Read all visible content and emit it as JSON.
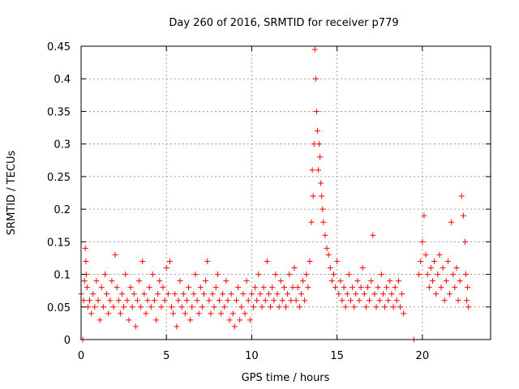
{
  "chart_data": {
    "type": "scatter",
    "title": "Day 260 of 2016, SRMTID for receiver p779",
    "xlabel": "GPS time / hours",
    "ylabel": "SRMTID / TECUs",
    "xlim": [
      0,
      24
    ],
    "ylim": [
      0,
      0.45
    ],
    "xticks": [
      0,
      5,
      10,
      15,
      20
    ],
    "yticks": [
      0,
      0.05,
      0.1,
      0.15,
      0.2,
      0.25,
      0.3,
      0.35,
      0.4,
      0.45
    ],
    "xtick_labels": [
      "0",
      "5",
      "10",
      "15",
      "20"
    ],
    "ytick_labels": [
      "0",
      "0.05",
      "0.1",
      "0.15",
      "0.2",
      "0.25",
      "0.3",
      "0.35",
      "0.4",
      "0.45"
    ],
    "grid": true,
    "marker": "+",
    "color": "#ff0000",
    "series": [
      {
        "name": "SRMTID",
        "points": [
          [
            0.0,
            0.07
          ],
          [
            0.1,
            0.0
          ],
          [
            0.15,
            0.06
          ],
          [
            0.2,
            0.09
          ],
          [
            0.25,
            0.14
          ],
          [
            0.28,
            0.12
          ],
          [
            0.3,
            0.1
          ],
          [
            0.35,
            0.08
          ],
          [
            0.4,
            0.05
          ],
          [
            0.5,
            0.06
          ],
          [
            0.6,
            0.04
          ],
          [
            0.7,
            0.07
          ],
          [
            0.8,
            0.05
          ],
          [
            0.9,
            0.09
          ],
          [
            1.0,
            0.06
          ],
          [
            1.1,
            0.03
          ],
          [
            1.2,
            0.08
          ],
          [
            1.3,
            0.05
          ],
          [
            1.4,
            0.1
          ],
          [
            1.5,
            0.07
          ],
          [
            1.6,
            0.04
          ],
          [
            1.7,
            0.06
          ],
          [
            1.8,
            0.09
          ],
          [
            1.9,
            0.05
          ],
          [
            2.0,
            0.13
          ],
          [
            2.1,
            0.08
          ],
          [
            2.2,
            0.06
          ],
          [
            2.3,
            0.04
          ],
          [
            2.4,
            0.07
          ],
          [
            2.5,
            0.05
          ],
          [
            2.6,
            0.1
          ],
          [
            2.7,
            0.06
          ],
          [
            2.8,
            0.03
          ],
          [
            2.9,
            0.08
          ],
          [
            3.0,
            0.05
          ],
          [
            3.1,
            0.07
          ],
          [
            3.2,
            0.02
          ],
          [
            3.3,
            0.06
          ],
          [
            3.4,
            0.09
          ],
          [
            3.5,
            0.05
          ],
          [
            3.6,
            0.12
          ],
          [
            3.7,
            0.07
          ],
          [
            3.8,
            0.04
          ],
          [
            3.9,
            0.06
          ],
          [
            4.0,
            0.08
          ],
          [
            4.1,
            0.05
          ],
          [
            4.2,
            0.1
          ],
          [
            4.3,
            0.06
          ],
          [
            4.4,
            0.03
          ],
          [
            4.5,
            0.07
          ],
          [
            4.6,
            0.09
          ],
          [
            4.7,
            0.05
          ],
          [
            4.8,
            0.08
          ],
          [
            4.9,
            0.06
          ],
          [
            5.0,
            0.11
          ],
          [
            5.1,
            0.07
          ],
          [
            5.2,
            0.12
          ],
          [
            5.3,
            0.05
          ],
          [
            5.4,
            0.04
          ],
          [
            5.5,
            0.07
          ],
          [
            5.6,
            0.02
          ],
          [
            5.7,
            0.06
          ],
          [
            5.8,
            0.09
          ],
          [
            5.9,
            0.05
          ],
          [
            6.0,
            0.07
          ],
          [
            6.1,
            0.04
          ],
          [
            6.2,
            0.06
          ],
          [
            6.3,
            0.08
          ],
          [
            6.4,
            0.03
          ],
          [
            6.5,
            0.05
          ],
          [
            6.6,
            0.07
          ],
          [
            6.7,
            0.1
          ],
          [
            6.8,
            0.06
          ],
          [
            6.9,
            0.04
          ],
          [
            7.0,
            0.08
          ],
          [
            7.1,
            0.05
          ],
          [
            7.2,
            0.07
          ],
          [
            7.3,
            0.09
          ],
          [
            7.4,
            0.12
          ],
          [
            7.5,
            0.06
          ],
          [
            7.6,
            0.04
          ],
          [
            7.7,
            0.07
          ],
          [
            7.8,
            0.05
          ],
          [
            7.9,
            0.08
          ],
          [
            8.0,
            0.1
          ],
          [
            8.1,
            0.06
          ],
          [
            8.2,
            0.04
          ],
          [
            8.3,
            0.07
          ],
          [
            8.4,
            0.05
          ],
          [
            8.5,
            0.09
          ],
          [
            8.6,
            0.06
          ],
          [
            8.7,
            0.03
          ],
          [
            8.8,
            0.07
          ],
          [
            8.9,
            0.04
          ],
          [
            9.0,
            0.02
          ],
          [
            9.1,
            0.06
          ],
          [
            9.2,
            0.08
          ],
          [
            9.3,
            0.03
          ],
          [
            9.4,
            0.05
          ],
          [
            9.5,
            0.07
          ],
          [
            9.6,
            0.04
          ],
          [
            9.7,
            0.09
          ],
          [
            9.8,
            0.06
          ],
          [
            9.9,
            0.03
          ],
          [
            10.0,
            0.07
          ],
          [
            10.1,
            0.05
          ],
          [
            10.2,
            0.08
          ],
          [
            10.3,
            0.06
          ],
          [
            10.4,
            0.1
          ],
          [
            10.5,
            0.07
          ],
          [
            10.6,
            0.05
          ],
          [
            10.7,
            0.08
          ],
          [
            10.8,
            0.06
          ],
          [
            10.9,
            0.12
          ],
          [
            11.0,
            0.07
          ],
          [
            11.1,
            0.05
          ],
          [
            11.2,
            0.08
          ],
          [
            11.3,
            0.06
          ],
          [
            11.4,
            0.1
          ],
          [
            11.5,
            0.07
          ],
          [
            11.6,
            0.05
          ],
          [
            11.7,
            0.09
          ],
          [
            11.8,
            0.06
          ],
          [
            11.9,
            0.08
          ],
          [
            12.0,
            0.05
          ],
          [
            12.1,
            0.07
          ],
          [
            12.2,
            0.1
          ],
          [
            12.3,
            0.06
          ],
          [
            12.4,
            0.08
          ],
          [
            12.5,
            0.11
          ],
          [
            12.6,
            0.06
          ],
          [
            12.7,
            0.08
          ],
          [
            12.8,
            0.05
          ],
          [
            12.9,
            0.07
          ],
          [
            13.0,
            0.09
          ],
          [
            13.1,
            0.06
          ],
          [
            13.2,
            0.1
          ],
          [
            13.3,
            0.08
          ],
          [
            13.4,
            0.12
          ],
          [
            13.5,
            0.18
          ],
          [
            13.55,
            0.26
          ],
          [
            13.6,
            0.22
          ],
          [
            13.65,
            0.3
          ],
          [
            13.7,
            0.445
          ],
          [
            13.75,
            0.4
          ],
          [
            13.8,
            0.35
          ],
          [
            13.85,
            0.32
          ],
          [
            13.9,
            0.26
          ],
          [
            13.95,
            0.3
          ],
          [
            14.0,
            0.28
          ],
          [
            14.05,
            0.24
          ],
          [
            14.1,
            0.22
          ],
          [
            14.15,
            0.2
          ],
          [
            14.2,
            0.18
          ],
          [
            14.3,
            0.16
          ],
          [
            14.4,
            0.14
          ],
          [
            14.5,
            0.13
          ],
          [
            14.6,
            0.11
          ],
          [
            14.7,
            0.09
          ],
          [
            14.8,
            0.1
          ],
          [
            14.9,
            0.08
          ],
          [
            15.0,
            0.12
          ],
          [
            15.1,
            0.07
          ],
          [
            15.2,
            0.09
          ],
          [
            15.3,
            0.06
          ],
          [
            15.4,
            0.08
          ],
          [
            15.5,
            0.05
          ],
          [
            15.6,
            0.07
          ],
          [
            15.7,
            0.1
          ],
          [
            15.8,
            0.06
          ],
          [
            15.9,
            0.08
          ],
          [
            16.0,
            0.05
          ],
          [
            16.1,
            0.07
          ],
          [
            16.2,
            0.09
          ],
          [
            16.3,
            0.06
          ],
          [
            16.4,
            0.08
          ],
          [
            16.5,
            0.11
          ],
          [
            16.6,
            0.07
          ],
          [
            16.7,
            0.05
          ],
          [
            16.8,
            0.08
          ],
          [
            16.9,
            0.06
          ],
          [
            17.0,
            0.09
          ],
          [
            17.1,
            0.16
          ],
          [
            17.2,
            0.07
          ],
          [
            17.3,
            0.05
          ],
          [
            17.4,
            0.08
          ],
          [
            17.5,
            0.06
          ],
          [
            17.6,
            0.1
          ],
          [
            17.7,
            0.07
          ],
          [
            17.8,
            0.05
          ],
          [
            17.9,
            0.08
          ],
          [
            18.0,
            0.06
          ],
          [
            18.1,
            0.09
          ],
          [
            18.2,
            0.07
          ],
          [
            18.3,
            0.05
          ],
          [
            18.4,
            0.08
          ],
          [
            18.5,
            0.06
          ],
          [
            18.6,
            0.09
          ],
          [
            18.7,
            0.05
          ],
          [
            18.8,
            0.07
          ],
          [
            18.9,
            0.04
          ],
          [
            19.5,
            0.0
          ],
          [
            19.8,
            0.1
          ],
          [
            19.9,
            0.12
          ],
          [
            20.0,
            0.15
          ],
          [
            20.1,
            0.19
          ],
          [
            20.2,
            0.13
          ],
          [
            20.3,
            0.1
          ],
          [
            20.4,
            0.08
          ],
          [
            20.5,
            0.11
          ],
          [
            20.6,
            0.09
          ],
          [
            20.7,
            0.12
          ],
          [
            20.8,
            0.07
          ],
          [
            20.9,
            0.1
          ],
          [
            21.0,
            0.13
          ],
          [
            21.1,
            0.08
          ],
          [
            21.2,
            0.11
          ],
          [
            21.3,
            0.06
          ],
          [
            21.4,
            0.09
          ],
          [
            21.5,
            0.12
          ],
          [
            21.6,
            0.07
          ],
          [
            21.7,
            0.18
          ],
          [
            21.8,
            0.1
          ],
          [
            21.9,
            0.08
          ],
          [
            22.0,
            0.11
          ],
          [
            22.1,
            0.06
          ],
          [
            22.2,
            0.09
          ],
          [
            22.3,
            0.22
          ],
          [
            22.4,
            0.19
          ],
          [
            22.5,
            0.15
          ],
          [
            22.55,
            0.1
          ],
          [
            22.6,
            0.06
          ],
          [
            22.65,
            0.08
          ],
          [
            22.7,
            0.05
          ]
        ]
      }
    ]
  }
}
